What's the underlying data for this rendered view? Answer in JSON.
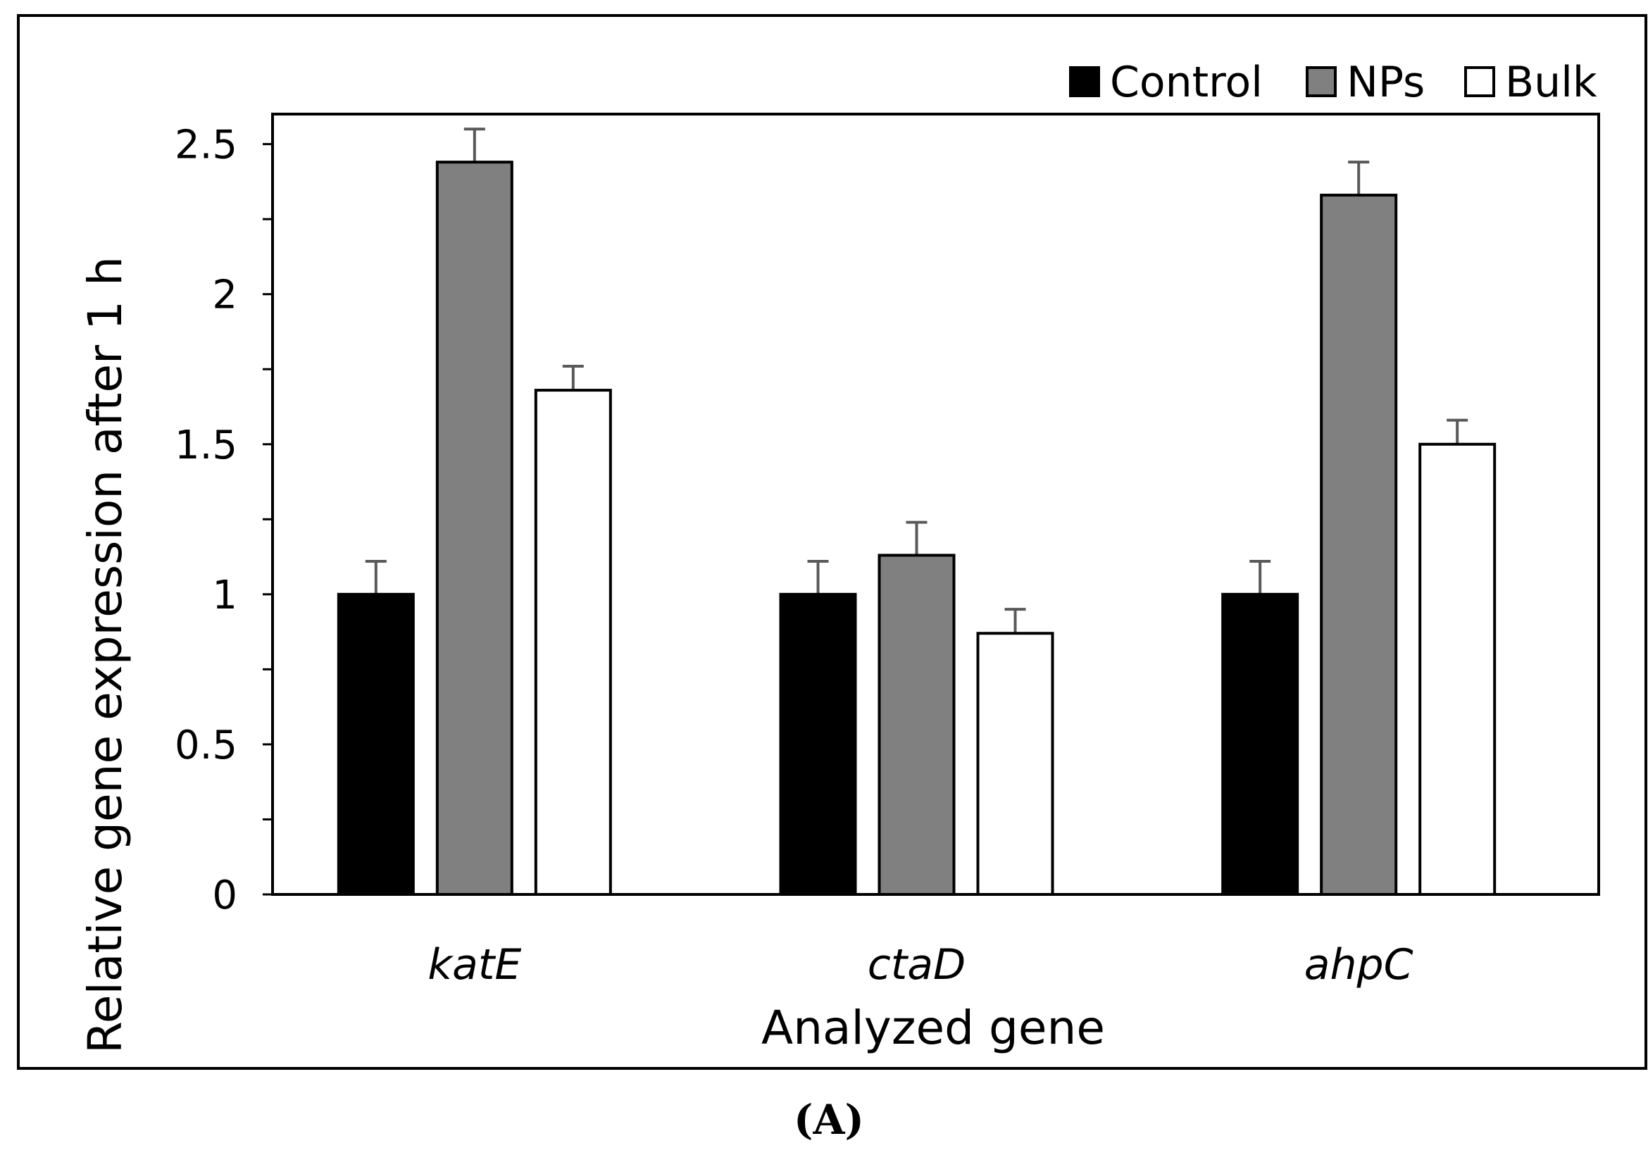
{
  "chart_data": {
    "type": "bar",
    "categories": [
      "katE",
      "ctaD",
      "ahpC"
    ],
    "series": [
      {
        "name": "Control",
        "values": [
          1.0,
          1.0,
          1.0
        ],
        "errors": [
          0.11,
          0.11,
          0.11
        ],
        "color": "#000000"
      },
      {
        "name": "NPs",
        "values": [
          2.44,
          1.13,
          2.33
        ],
        "errors": [
          0.11,
          0.11,
          0.11
        ],
        "color": "#808080"
      },
      {
        "name": "Bulk",
        "values": [
          1.68,
          0.87,
          1.5
        ],
        "errors": [
          0.08,
          0.08,
          0.08
        ],
        "color": "#ffffff"
      }
    ],
    "xlabel": "Analyzed gene",
    "ylabel": "Relative gene expression after 1 h",
    "ylim": [
      0,
      2.5
    ],
    "yticks": [
      0,
      0.5,
      1,
      1.5,
      2,
      2.5
    ],
    "ytick_labels": [
      "0",
      "0.5",
      "1",
      "1.5",
      "2",
      "2.5"
    ],
    "legend_position": "top-right",
    "grid": false
  },
  "panel_label": "(A)"
}
